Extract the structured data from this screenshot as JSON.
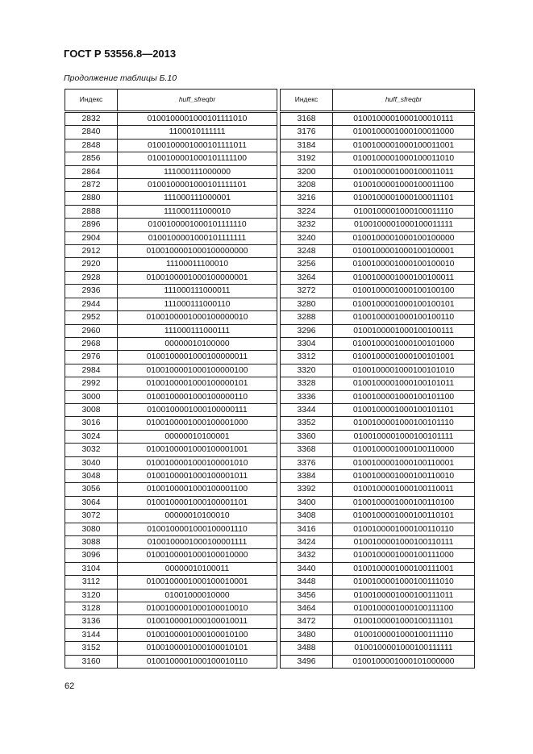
{
  "header": {
    "title": "ГОСТ Р 53556.8—2013"
  },
  "caption": "Продолжение таблицы Б.10",
  "columns": {
    "index": "Индекс",
    "code": "huff_sfreqbr"
  },
  "left_rows": [
    [
      "2832",
      "0100100001000101111010"
    ],
    [
      "2840",
      "1100010111111"
    ],
    [
      "2848",
      "0100100001000101111011"
    ],
    [
      "2856",
      "0100100001000101111100"
    ],
    [
      "2864",
      "111000111000000"
    ],
    [
      "2872",
      "0100100001000101111101"
    ],
    [
      "2880",
      "111000111000001"
    ],
    [
      "2888",
      "111000111000010"
    ],
    [
      "2896",
      "0100100001000101111110"
    ],
    [
      "2904",
      "0100100001000101111111"
    ],
    [
      "2912",
      "0100100001000100000000"
    ],
    [
      "2920",
      "11100011100010"
    ],
    [
      "2928",
      "0100100001000100000001"
    ],
    [
      "2936",
      "111000111000011"
    ],
    [
      "2944",
      "111000111000110"
    ],
    [
      "2952",
      "0100100001000100000010"
    ],
    [
      "2960",
      "111000111000111"
    ],
    [
      "2968",
      "00000010100000"
    ],
    [
      "2976",
      "0100100001000100000011"
    ],
    [
      "2984",
      "0100100001000100000100"
    ],
    [
      "2992",
      "0100100001000100000101"
    ],
    [
      "3000",
      "0100100001000100000110"
    ],
    [
      "3008",
      "0100100001000100000111"
    ],
    [
      "3016",
      "0100100001000100001000"
    ],
    [
      "3024",
      "00000010100001"
    ],
    [
      "3032",
      "0100100001000100001001"
    ],
    [
      "3040",
      "0100100001000100001010"
    ],
    [
      "3048",
      "0100100001000100001011"
    ],
    [
      "3056",
      "0100100001000100001100"
    ],
    [
      "3064",
      "0100100001000100001101"
    ],
    [
      "3072",
      "00000010100010"
    ],
    [
      "3080",
      "0100100001000100001110"
    ],
    [
      "3088",
      "0100100001000100001111"
    ],
    [
      "3096",
      "0100100001000100010000"
    ],
    [
      "3104",
      "00000010100011"
    ],
    [
      "3112",
      "0100100001000100010001"
    ],
    [
      "3120",
      "01001000010000"
    ],
    [
      "3128",
      "0100100001000100010010"
    ],
    [
      "3136",
      "0100100001000100010011"
    ],
    [
      "3144",
      "0100100001000100010100"
    ],
    [
      "3152",
      "0100100001000100010101"
    ],
    [
      "3160",
      "0100100001000100010110"
    ]
  ],
  "right_rows": [
    [
      "3168",
      "0100100001000100010111"
    ],
    [
      "3176",
      "0100100001000100011000"
    ],
    [
      "3184",
      "0100100001000100011001"
    ],
    [
      "3192",
      "0100100001000100011010"
    ],
    [
      "3200",
      "0100100001000100011011"
    ],
    [
      "3208",
      "0100100001000100011100"
    ],
    [
      "3216",
      "0100100001000100011101"
    ],
    [
      "3224",
      "0100100001000100011110"
    ],
    [
      "3232",
      "0100100001000100011111"
    ],
    [
      "3240",
      "0100100001000100100000"
    ],
    [
      "3248",
      "0100100001000100100001"
    ],
    [
      "3256",
      "0100100001000100100010"
    ],
    [
      "3264",
      "0100100001000100100011"
    ],
    [
      "3272",
      "0100100001000100100100"
    ],
    [
      "3280",
      "0100100001000100100101"
    ],
    [
      "3288",
      "0100100001000100100110"
    ],
    [
      "3296",
      "0100100001000100100111"
    ],
    [
      "3304",
      "0100100001000100101000"
    ],
    [
      "3312",
      "0100100001000100101001"
    ],
    [
      "3320",
      "0100100001000100101010"
    ],
    [
      "3328",
      "0100100001000100101011"
    ],
    [
      "3336",
      "0100100001000100101100"
    ],
    [
      "3344",
      "0100100001000100101101"
    ],
    [
      "3352",
      "0100100001000100101110"
    ],
    [
      "3360",
      "0100100001000100101111"
    ],
    [
      "3368",
      "0100100001000100110000"
    ],
    [
      "3376",
      "0100100001000100110001"
    ],
    [
      "3384",
      "0100100001000100110010"
    ],
    [
      "3392",
      "0100100001000100110011"
    ],
    [
      "3400",
      "0100100001000100110100"
    ],
    [
      "3408",
      "0100100001000100110101"
    ],
    [
      "3416",
      "0100100001000100110110"
    ],
    [
      "3424",
      "0100100001000100110111"
    ],
    [
      "3432",
      "0100100001000100111000"
    ],
    [
      "3440",
      "0100100001000100111001"
    ],
    [
      "3448",
      "0100100001000100111010"
    ],
    [
      "3456",
      "0100100001000100111011"
    ],
    [
      "3464",
      "0100100001000100111100"
    ],
    [
      "3472",
      "0100100001000100111101"
    ],
    [
      "3480",
      "0100100001000100111110"
    ],
    [
      "3488",
      "0100100001000100111111"
    ],
    [
      "3496",
      "0100100001000101000000"
    ]
  ],
  "footer": {
    "page_number": "62"
  }
}
